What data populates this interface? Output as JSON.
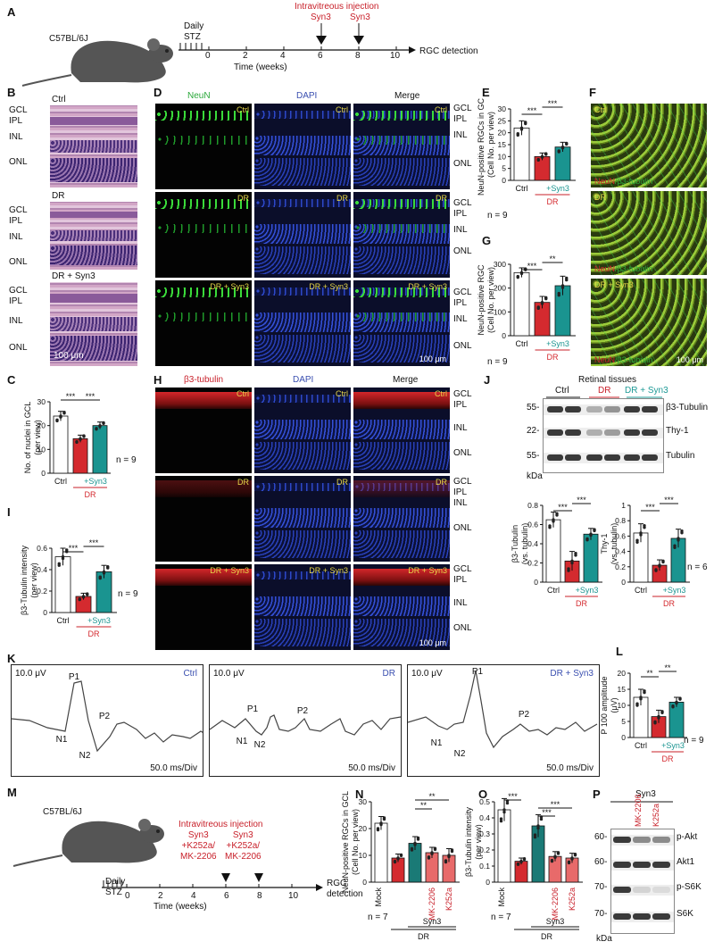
{
  "panels": {
    "A": {
      "letter": "A",
      "mouse": "C57BL/6J",
      "treatment": "Daily\nSTZ",
      "injection_title": "Intravitreous injection",
      "inj1": "Syn3",
      "inj2": "Syn3",
      "endpoint": "RGC detection",
      "ticks": [
        "0",
        "2",
        "4",
        "6",
        "8",
        "10"
      ],
      "axis_title": "Time (weeks)"
    },
    "B": {
      "letter": "B",
      "groups": [
        "Ctrl",
        "DR",
        "DR + Syn3"
      ],
      "layers": [
        "GCL",
        "IPL",
        "INL",
        "ONL"
      ],
      "scale": "100 μm"
    },
    "C": {
      "letter": "C",
      "ylabel": "No. of nuclei in GCL (per view)",
      "n": "n = 9"
    },
    "D": {
      "letter": "D",
      "cols": [
        "NeuN",
        "DAPI",
        "Merge"
      ],
      "rows": [
        "Ctrl",
        "DR",
        "DR + Syn3"
      ],
      "layers": [
        "GCL",
        "IPL",
        "INL",
        "ONL"
      ],
      "scale": "100 μm"
    },
    "E": {
      "letter": "E",
      "ylabel": "NeuN-positive RGCs in GCL",
      "ylabel2": "(Cell No. per view)",
      "n": "n = 9"
    },
    "F": {
      "letter": "F",
      "rows": [
        "Ctrl",
        "DR",
        "DR + Syn3"
      ],
      "stain_a": "NeuN",
      "stain_b": "/β3-tubulin",
      "scale": "100 μm"
    },
    "G": {
      "letter": "G",
      "ylabel": "NeuN-positive RGC",
      "ylabel2": "(Cell No. per view)",
      "n": "n = 9"
    },
    "H": {
      "letter": "H",
      "cols": [
        "β3-tubulin",
        "DAPI",
        "Merge"
      ],
      "rows": [
        "Ctrl",
        "DR",
        "DR + Syn3"
      ],
      "layers": [
        "GCL",
        "IPL",
        "INL",
        "ONL"
      ],
      "scale": "100 μm"
    },
    "I": {
      "letter": "I",
      "ylabel": "β3-Tubulin intensity",
      "ylabel2": "(per view)",
      "n": "n = 9"
    },
    "J": {
      "letter": "J",
      "title": "Retinal tissues",
      "groups": [
        "Ctrl",
        "DR",
        "DR + Syn3"
      ],
      "proteins": [
        "β3-Tubulin",
        "Thy-1",
        "Tubulin"
      ],
      "mw": [
        "55-",
        "22-",
        "55-"
      ],
      "kda": "kDa",
      "ylabel_left": "β3-Tubulin (vs. tubulin)",
      "ylabel_right": "Thy-1 (vs. tubulin)",
      "n": "n = 6"
    },
    "K": {
      "letter": "K",
      "traces": [
        {
          "group": "Ctrl",
          "amp": "10.0 μV",
          "div": "50.0 ms/Div",
          "peaks": [
            "P1",
            "P2",
            "N1",
            "N2"
          ]
        },
        {
          "group": "DR",
          "amp": "10.0 μV",
          "div": "50.0 ms/Div",
          "peaks": [
            "P1",
            "P2",
            "N1",
            "N2"
          ]
        },
        {
          "group": "DR + Syn3",
          "amp": "10.0 μV",
          "div": "50.0 ms/Div",
          "peaks": [
            "P1",
            "P2",
            "N1",
            "N2"
          ]
        }
      ]
    },
    "L": {
      "letter": "L",
      "ylabel": "P 100 amplitude (μV)",
      "n": "n = 9"
    },
    "M": {
      "letter": "M",
      "mouse": "C57BL/6J",
      "treatment": "Daily\nSTZ",
      "injection_title": "Intravitreous injection",
      "inj1": "Syn3\n+K252a/\nMK-2206",
      "inj2": "Syn3\n+K252a/\nMK-2206",
      "endpoint": "RGC\ndetection",
      "ticks": [
        "0",
        "2",
        "4",
        "6",
        "8",
        "10"
      ],
      "axis_title": "Time (weeks)"
    },
    "N": {
      "letter": "N",
      "ylabel": "NeuN-positive RGCs in GCL",
      "ylabel2": "(Cell No. per view)",
      "n": "n = 7"
    },
    "O": {
      "letter": "O",
      "ylabel": "β3-Tubulin intensity",
      "ylabel2": "(per view)",
      "n": "n = 7"
    },
    "P": {
      "letter": "P",
      "header": "Syn3",
      "lanes": [
        "MK-2206",
        "K252a"
      ],
      "proteins": [
        "p-Akt",
        "Akt1",
        "p-S6K",
        "S6K"
      ],
      "mw": [
        "60-",
        "60-",
        "70-",
        "70-"
      ],
      "kda": "kDa"
    }
  },
  "labels": {
    "ctrl": "Ctrl",
    "dr": "DR",
    "syn3": "+Syn3",
    "mock": "Mock",
    "mk": "MK-2206",
    "k252a": "K252a",
    "syn3_plain": "Syn3"
  },
  "colors": {
    "ctrl": "#ffffff",
    "dr": "#d42a2f",
    "syn3": "#1a9490",
    "mock": "#ffffff",
    "dr_dark": "#d42a2f",
    "syn3_dark": "#1a7a76",
    "inhib": "#e86a6a"
  },
  "chart_data": [
    {
      "id": "C",
      "type": "bar",
      "categories": [
        "Ctrl",
        "DR",
        "+Syn3"
      ],
      "values": [
        24,
        14.5,
        20
      ],
      "errors": [
        2,
        1.5,
        1.5
      ],
      "yticks": [
        0,
        10,
        20,
        30
      ],
      "ylim": [
        0,
        30
      ],
      "sig": [
        "***",
        "***"
      ],
      "ylabel": "No. of nuclei in GCL (per view)"
    },
    {
      "id": "E",
      "type": "bar",
      "categories": [
        "Ctrl",
        "DR",
        "+Syn3"
      ],
      "values": [
        22,
        10,
        14
      ],
      "errors": [
        3,
        1.5,
        2
      ],
      "yticks": [
        0,
        5,
        10,
        15,
        20,
        25,
        30
      ],
      "ylim": [
        0,
        30
      ],
      "sig": [
        "***",
        "***"
      ],
      "ylabel": "NeuN-positive RGCs in GCL (Cell No. per view)"
    },
    {
      "id": "G",
      "type": "bar",
      "categories": [
        "Ctrl",
        "DR",
        "+Syn3"
      ],
      "values": [
        265,
        140,
        210
      ],
      "errors": [
        20,
        25,
        40
      ],
      "yticks": [
        0,
        100,
        200,
        300
      ],
      "ylim": [
        0,
        300
      ],
      "sig": [
        "***",
        "**"
      ],
      "ylabel": "NeuN-positive RGC (Cell No. per view)"
    },
    {
      "id": "I",
      "type": "bar",
      "categories": [
        "Ctrl",
        "DR",
        "+Syn3"
      ],
      "values": [
        0.52,
        0.15,
        0.38
      ],
      "errors": [
        0.08,
        0.03,
        0.06
      ],
      "yticks": [
        0,
        0.2,
        0.4,
        0.6
      ],
      "ylim": [
        0,
        0.6
      ],
      "sig": [
        "***",
        "***"
      ],
      "ylabel": "β3-Tubulin intensity (per view)"
    },
    {
      "id": "J1",
      "type": "bar",
      "categories": [
        "Ctrl",
        "DR",
        "+Syn3"
      ],
      "values": [
        0.65,
        0.22,
        0.5
      ],
      "errors": [
        0.08,
        0.1,
        0.06
      ],
      "yticks": [
        0,
        0.2,
        0.4,
        0.6,
        0.8
      ],
      "ylim": [
        0,
        0.8
      ],
      "sig": [
        "***",
        "***"
      ],
      "ylabel": "β3-Tubulin (vs. tubulin)"
    },
    {
      "id": "J2",
      "type": "bar",
      "categories": [
        "Ctrl",
        "DR",
        "+Syn3"
      ],
      "values": [
        0.64,
        0.22,
        0.57
      ],
      "errors": [
        0.12,
        0.07,
        0.12
      ],
      "yticks": [
        0,
        0.2,
        0.4,
        0.6,
        0.8,
        1.0
      ],
      "ylim": [
        0,
        1.0
      ],
      "sig": [
        "***",
        "***"
      ],
      "ylabel": "Thy-1 (vs. tubulin)"
    },
    {
      "id": "L",
      "type": "bar",
      "categories": [
        "Ctrl",
        "DR",
        "+Syn3"
      ],
      "values": [
        12.5,
        6.5,
        11
      ],
      "errors": [
        2.5,
        2,
        1.5
      ],
      "yticks": [
        0,
        5,
        10,
        15,
        20
      ],
      "ylim": [
        0,
        20
      ],
      "sig": [
        "**",
        "**"
      ],
      "ylabel": "P 100 amplitude (μV)"
    },
    {
      "id": "N",
      "type": "bar",
      "categories": [
        "Mock",
        "DR",
        "Syn3",
        "MK-2206",
        "K252a"
      ],
      "values": [
        22,
        9,
        14.5,
        11,
        10
      ],
      "errors": [
        2.5,
        1.5,
        2.5,
        2,
        2.5
      ],
      "yticks": [
        0,
        10,
        20,
        30
      ],
      "ylim": [
        0,
        30
      ],
      "sig": [
        "**",
        "**"
      ],
      "ylabel": "NeuN-positive RGCs in GCL (Cell No. per view)"
    },
    {
      "id": "O",
      "type": "bar",
      "categories": [
        "Mock",
        "DR",
        "Syn3",
        "MK-2206",
        "K252a"
      ],
      "values": [
        0.45,
        0.13,
        0.35,
        0.16,
        0.15
      ],
      "errors": [
        0.07,
        0.02,
        0.07,
        0.03,
        0.03
      ],
      "yticks": [
        0,
        0.1,
        0.2,
        0.3,
        0.4,
        0.5
      ],
      "ylim": [
        0,
        0.5
      ],
      "sig": [
        "***",
        "***",
        "***"
      ],
      "ylabel": "β3-Tubulin intensity (per view)"
    }
  ]
}
